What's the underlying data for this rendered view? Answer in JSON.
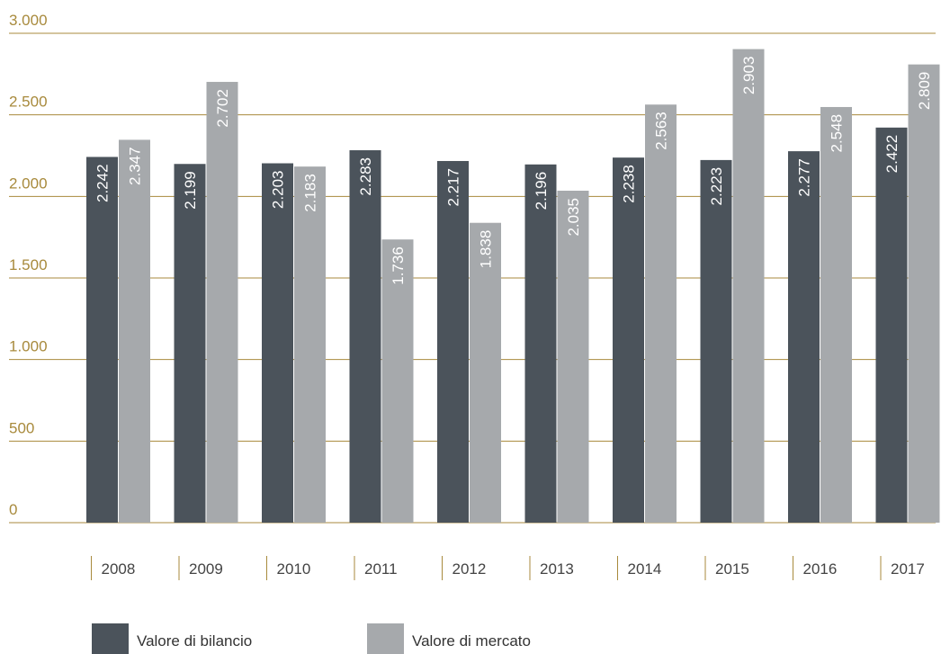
{
  "chart_data": {
    "type": "bar",
    "categories": [
      "2008",
      "2009",
      "2010",
      "2011",
      "2012",
      "2013",
      "2014",
      "2015",
      "2016",
      "2017"
    ],
    "series": [
      {
        "name": "Valore di bilancio",
        "color": "#4b535b",
        "values": [
          2242,
          2199,
          2203,
          2283,
          2217,
          2196,
          2238,
          2223,
          2277,
          2422
        ],
        "value_labels": [
          "2.242",
          "2.199",
          "2.203",
          "2.283",
          "2.217",
          "2.196",
          "2.238",
          "2.223",
          "2.277",
          "2.422"
        ]
      },
      {
        "name": "Valore di mercato",
        "color": "#a6a9ac",
        "values": [
          2347,
          2702,
          2183,
          1736,
          1838,
          2035,
          2563,
          2903,
          2548,
          2809
        ],
        "value_labels": [
          "2.347",
          "2.702",
          "2.183",
          "1.736",
          "1.838",
          "2.035",
          "2.563",
          "2.903",
          "2.548",
          "2.809"
        ]
      }
    ],
    "ylim": [
      0,
      3000
    ],
    "yticks": [
      0,
      500,
      {
        "value": 1000,
        "label": "1.000"
      },
      {
        "value": 1500,
        "label": "1.500"
      },
      {
        "value": 2000,
        "label": "2.000"
      },
      {
        "value": 2500,
        "label": "2.500"
      },
      {
        "value": 3000,
        "label": "3.000"
      }
    ],
    "grid": true
  }
}
